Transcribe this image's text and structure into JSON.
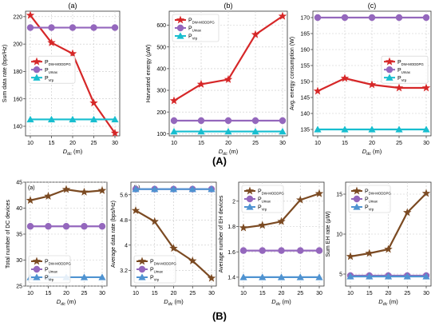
{
  "figure": {
    "label_a": "(A)",
    "label_b": "(B)"
  },
  "chart_data": [
    {
      "panel": "A-a",
      "title": "(a)",
      "type": "line",
      "xlabel": "Ddc (m)",
      "ylabel": "Sum data rate (bps/Hz)",
      "x": [
        10,
        15,
        20,
        25,
        30
      ],
      "xlim": [
        10,
        30
      ],
      "ylim": [
        133,
        224
      ],
      "yticks": [
        140,
        160,
        180,
        200,
        220
      ],
      "grid": true,
      "legend": "center-left",
      "series": [
        {
          "name": "P_DW-MODDPG",
          "values": [
            221,
            201,
            193,
            157,
            135
          ],
          "color": "#d62728",
          "marker": "star"
        },
        {
          "name": "P_Umax",
          "values": [
            212,
            212,
            212,
            212,
            212
          ],
          "color": "#9467bd",
          "marker": "circle"
        },
        {
          "name": "P_Vrp",
          "values": [
            145,
            145,
            145,
            145,
            145
          ],
          "color": "#17becf",
          "marker": "triangle"
        }
      ]
    },
    {
      "panel": "A-b",
      "title": "(b)",
      "type": "line",
      "xlabel": "Ddc (m)",
      "ylabel": "Harvested energy (μW)",
      "x": [
        10,
        15,
        20,
        25,
        30
      ],
      "xlim": [
        10,
        30
      ],
      "ylim": [
        90,
        665
      ],
      "yticks": [
        100,
        200,
        300,
        400,
        500,
        600
      ],
      "grid": true,
      "legend": "top-left",
      "series": [
        {
          "name": "P_DW-MODDPG",
          "values": [
            252,
            328,
            350,
            557,
            642
          ],
          "color": "#d62728",
          "marker": "star"
        },
        {
          "name": "P_Umax",
          "values": [
            160,
            160,
            160,
            160,
            160
          ],
          "color": "#9467bd",
          "marker": "circle"
        },
        {
          "name": "P_Vrp",
          "values": [
            110,
            110,
            110,
            110,
            110
          ],
          "color": "#17becf",
          "marker": "triangle"
        }
      ]
    },
    {
      "panel": "A-c",
      "title": "(c)",
      "type": "line",
      "xlabel": "Ddc (m)",
      "ylabel": "Avg. energy consumption (W)",
      "x": [
        10,
        15,
        20,
        25,
        30
      ],
      "xlim": [
        10,
        30
      ],
      "ylim": [
        133,
        172
      ],
      "yticks": [
        135,
        140,
        145,
        150,
        155,
        160,
        165,
        170
      ],
      "grid": true,
      "legend": "center-right",
      "series": [
        {
          "name": "P_DW-MODDPG",
          "values": [
            147,
            151,
            149,
            148,
            148
          ],
          "color": "#d62728",
          "marker": "star"
        },
        {
          "name": "P_Umax",
          "values": [
            170,
            170,
            170,
            170,
            170
          ],
          "color": "#9467bd",
          "marker": "circle"
        },
        {
          "name": "P_Vrp",
          "values": [
            135,
            135,
            135,
            135,
            135
          ],
          "color": "#17becf",
          "marker": "triangle"
        }
      ]
    },
    {
      "panel": "B-a",
      "title": "(a)",
      "type": "line",
      "xlabel": "Ddc (m)",
      "ylabel": "Total number of DC devices",
      "x": [
        10,
        15,
        20,
        25,
        30
      ],
      "xlim": [
        10,
        30
      ],
      "ylim": [
        25,
        45
      ],
      "yticks": [
        25,
        30,
        35,
        40,
        45
      ],
      "grid": true,
      "legend": "bottom-left",
      "series": [
        {
          "name": "P_DW-MODDPG",
          "values": [
            41.5,
            42.3,
            43.6,
            43.1,
            43.4
          ],
          "color": "#7b4a22",
          "marker": "star"
        },
        {
          "name": "P_Umax",
          "values": [
            36.5,
            36.5,
            36.5,
            36.5,
            36.5
          ],
          "color": "#9467bd",
          "marker": "circle"
        },
        {
          "name": "P_Vrp",
          "values": [
            26.7,
            26.7,
            26.7,
            26.7,
            26.7
          ],
          "color": "#4f93d1",
          "marker": "triangle"
        }
      ]
    },
    {
      "panel": "B-b",
      "title": "(b)",
      "type": "line",
      "xlabel": "Ddc (m)",
      "ylabel": "Average data rate (bps/Hz)",
      "x": [
        10,
        15,
        20,
        25,
        30
      ],
      "xlim": [
        10,
        30
      ],
      "ylim": [
        2.7,
        6.0
      ],
      "yticks": [
        3.2,
        4.0,
        4.8,
        5.6
      ],
      "grid": true,
      "legend": "bottom-left",
      "series": [
        {
          "name": "P_DW-MODDPG",
          "values": [
            5.1,
            4.75,
            3.9,
            3.5,
            2.95
          ],
          "color": "#7b4a22",
          "marker": "star"
        },
        {
          "name": "P_Umax",
          "values": [
            5.78,
            5.78,
            5.78,
            5.78,
            5.78
          ],
          "color": "#9467bd",
          "marker": "circle"
        },
        {
          "name": "P_Vrp",
          "values": [
            5.78,
            5.78,
            5.78,
            5.78,
            5.78
          ],
          "color": "#4f93d1",
          "marker": "triangle"
        }
      ]
    },
    {
      "panel": "B-c",
      "type": "line",
      "xlabel": "Ddc (m)",
      "ylabel": "Average number of EH devices",
      "x": [
        10,
        15,
        20,
        25,
        30
      ],
      "xlim": [
        10,
        30
      ],
      "ylim": [
        1.33,
        2.15
      ],
      "yticks": [
        1.4,
        1.6,
        1.8,
        2.0
      ],
      "grid": true,
      "legend": "top-left",
      "series": [
        {
          "name": "P_DW-MODDPG",
          "values": [
            1.79,
            1.81,
            1.84,
            2.01,
            2.06
          ],
          "color": "#7b4a22",
          "marker": "star"
        },
        {
          "name": "P_Umax",
          "values": [
            1.61,
            1.61,
            1.61,
            1.61,
            1.61
          ],
          "color": "#9467bd",
          "marker": "circle"
        },
        {
          "name": "P_Vrp",
          "values": [
            1.4,
            1.4,
            1.4,
            1.4,
            1.4
          ],
          "color": "#4f93d1",
          "marker": "triangle"
        }
      ]
    },
    {
      "panel": "B-d",
      "type": "line",
      "xlabel": "Ddc (m)",
      "ylabel": "Sum EH rate (μW)",
      "x": [
        10,
        15,
        20,
        25,
        30
      ],
      "xlim": [
        10,
        30
      ],
      "ylim": [
        3.5,
        16.5
      ],
      "yticks": [
        5,
        10,
        15
      ],
      "grid": true,
      "legend": "top-left",
      "series": [
        {
          "name": "P_DW-MODDPG",
          "values": [
            7.2,
            7.6,
            8.1,
            12.7,
            15.1
          ],
          "color": "#7b4a22",
          "marker": "star"
        },
        {
          "name": "P_Umax",
          "values": [
            4.8,
            4.8,
            4.8,
            4.8,
            4.8
          ],
          "color": "#9467bd",
          "marker": "circle"
        },
        {
          "name": "P_Vrp",
          "values": [
            4.7,
            4.7,
            4.7,
            4.7,
            4.7
          ],
          "color": "#4f93d1",
          "marker": "triangle"
        }
      ]
    }
  ]
}
